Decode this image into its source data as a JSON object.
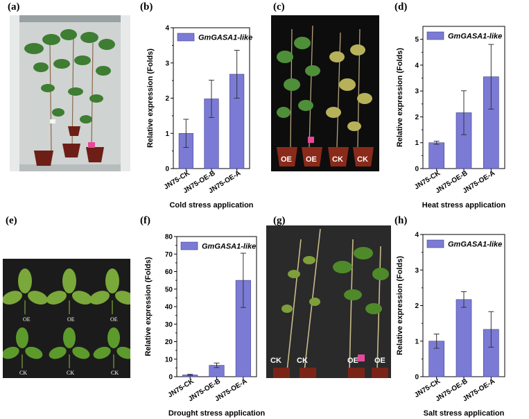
{
  "panel_labels": [
    "(a)",
    "(b)",
    "(c)",
    "(d)",
    "(e)",
    "(f)",
    "(g)",
    "(h)"
  ],
  "photo_c_tags": [
    "OE",
    "OE",
    "CK",
    "CK"
  ],
  "photo_e_tags": [
    "OE",
    "OE",
    "OE",
    "CK",
    "CK",
    "CK"
  ],
  "photo_g_tags": [
    "CK",
    "CK",
    "OE",
    "OE"
  ],
  "colors": {
    "bar": "#7b7bd6",
    "bar_edge": "#3a3a8a"
  },
  "chart_data": [
    {
      "type": "bar",
      "title": "",
      "legend": "GmGASA1-like",
      "categories": [
        "JN75-CK",
        "JN75-OE-B",
        "JN75-OE-A"
      ],
      "values": [
        1.0,
        1.98,
        2.68
      ],
      "errors": [
        0.4,
        0.53,
        0.68
      ],
      "ylim": [
        0,
        4
      ],
      "yticks": [
        "0",
        "1",
        "2",
        "3",
        "4"
      ],
      "ylabel": "Relative expression (Folds)",
      "xlabel": "Cold stress application"
    },
    {
      "type": "bar",
      "title": "",
      "legend": "GmGASA1-like",
      "categories": [
        "JN75-CK",
        "JN75-OE-B",
        "JN75-OE-A"
      ],
      "values": [
        1.0,
        2.16,
        3.55
      ],
      "errors": [
        0.06,
        0.85,
        1.25
      ],
      "ylim": [
        0,
        5.5
      ],
      "yticks": [
        "0",
        "1",
        "2",
        "3",
        "4",
        "5"
      ],
      "ylabel": "Relative expression (Folds)",
      "xlabel": "Heat stress application"
    },
    {
      "type": "bar",
      "title": "",
      "legend": "GmGASA1-like",
      "categories": [
        "JN75-CK",
        "JN75-OE-B",
        "JN75-OE-A"
      ],
      "values": [
        1.0,
        6.5,
        55.0
      ],
      "errors": [
        0.4,
        1.3,
        15.5
      ],
      "ylim": [
        0,
        80
      ],
      "yticks": [
        "0",
        "10",
        "20",
        "30",
        "40",
        "50",
        "60",
        "70",
        "80"
      ],
      "ylabel": "Relative expression (Folds)",
      "xlabel": "Drought stress application"
    },
    {
      "type": "bar",
      "title": "",
      "legend": "GmGASA1-like",
      "categories": [
        "JN75-CK",
        "JN75-OE-B",
        "JN75-OE-A"
      ],
      "values": [
        1.0,
        2.17,
        1.33
      ],
      "errors": [
        0.2,
        0.22,
        0.5
      ],
      "ylim": [
        0,
        4
      ],
      "yticks": [
        "0",
        "1",
        "2",
        "3",
        "4"
      ],
      "ylabel": "Relative expression (Folds)",
      "xlabel": "Salt stress application"
    }
  ]
}
